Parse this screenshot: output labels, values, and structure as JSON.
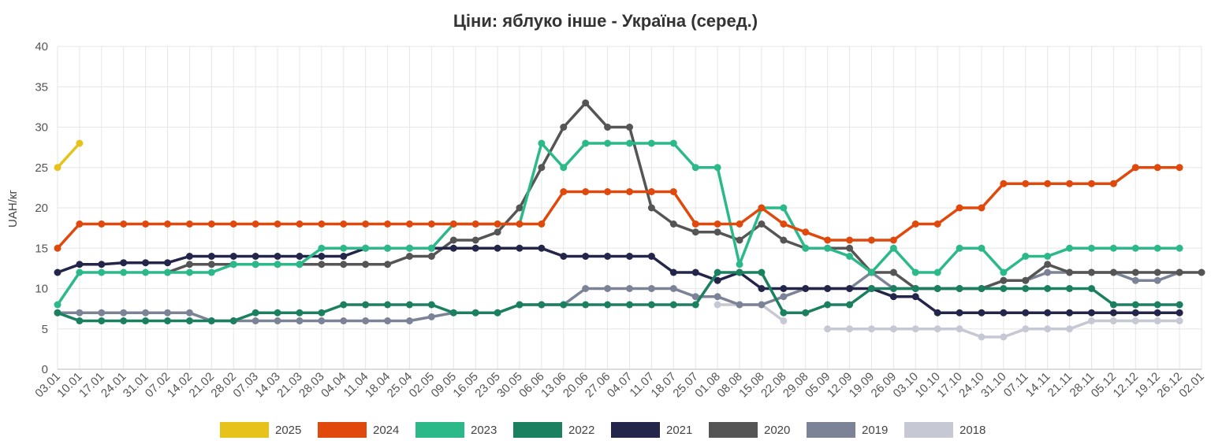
{
  "chart_data": {
    "type": "line",
    "title": "Ціни: яблуко інше - Україна (серед.)",
    "ylabel": "UAH/кг",
    "xlabel": "",
    "ylim": [
      0,
      40
    ],
    "yticks": [
      0,
      5,
      10,
      15,
      20,
      25,
      30,
      35,
      40
    ],
    "grid": true,
    "legend_position": "bottom",
    "categories": [
      "03.01",
      "10.01",
      "17.01",
      "24.01",
      "31.01",
      "07.02",
      "14.02",
      "21.02",
      "28.02",
      "07.03",
      "14.03",
      "21.03",
      "28.03",
      "04.04",
      "11.04",
      "18.04",
      "25.04",
      "02.05",
      "09.05",
      "16.05",
      "23.05",
      "30.05",
      "06.06",
      "13.06",
      "20.06",
      "27.06",
      "04.07",
      "11.07",
      "18.07",
      "25.07",
      "01.08",
      "08.08",
      "15.08",
      "22.08",
      "29.08",
      "05.09",
      "12.09",
      "19.09",
      "26.09",
      "03.10",
      "10.10",
      "17.10",
      "24.10",
      "31.10",
      "07.11",
      "14.11",
      "21.11",
      "28.11",
      "05.12",
      "12.12",
      "19.12",
      "26.12",
      "02.01"
    ],
    "series": [
      {
        "name": "2025",
        "color": "#e6c21a",
        "values": [
          25,
          28,
          null,
          null,
          null,
          null,
          null,
          null,
          null,
          null,
          null,
          null,
          null,
          null,
          null,
          null,
          null,
          null,
          null,
          null,
          null,
          null,
          null,
          null,
          null,
          null,
          null,
          null,
          null,
          null,
          null,
          null,
          null,
          null,
          null,
          null,
          null,
          null,
          null,
          null,
          null,
          null,
          null,
          null,
          null,
          null,
          null,
          null,
          null,
          null,
          null,
          null,
          null
        ]
      },
      {
        "name": "2024",
        "color": "#e0480c",
        "values": [
          15,
          18,
          18,
          18,
          18,
          18,
          18,
          18,
          18,
          18,
          18,
          18,
          18,
          18,
          18,
          18,
          18,
          18,
          18,
          18,
          18,
          18,
          18,
          22,
          22,
          22,
          22,
          22,
          22,
          18,
          18,
          18,
          20,
          18,
          17,
          16,
          16,
          16,
          16,
          18,
          18,
          20,
          20,
          23,
          23,
          23,
          23,
          23,
          23,
          25,
          25,
          25,
          null
        ]
      },
      {
        "name": "2023",
        "color": "#2cb98a",
        "values": [
          8,
          12,
          12,
          12,
          12,
          12,
          12,
          12,
          13,
          13,
          13,
          13,
          15,
          15,
          15,
          15,
          15,
          15,
          18,
          18,
          18,
          18,
          28,
          25,
          28,
          28,
          28,
          28,
          28,
          25,
          25,
          13,
          20,
          20,
          15,
          15,
          14,
          12,
          15,
          12,
          12,
          15,
          15,
          12,
          14,
          14,
          15,
          15,
          15,
          15,
          15,
          15,
          null
        ]
      },
      {
        "name": "2022",
        "color": "#1b8060",
        "values": [
          7,
          6,
          6,
          6,
          6,
          6,
          6,
          6,
          6,
          7,
          7,
          7,
          7,
          8,
          8,
          8,
          8,
          8,
          7,
          7,
          7,
          8,
          8,
          8,
          8,
          8,
          8,
          8,
          8,
          8,
          12,
          12,
          12,
          7,
          7,
          8,
          8,
          10,
          10,
          10,
          10,
          10,
          10,
          10,
          10,
          10,
          10,
          10,
          8,
          8,
          8,
          8,
          null
        ]
      },
      {
        "name": "2021",
        "color": "#23264a",
        "values": [
          12,
          13,
          13,
          13.2,
          13.2,
          13.2,
          14,
          14,
          14,
          14,
          14,
          14,
          14,
          14,
          15,
          15,
          15,
          15,
          15,
          15,
          15,
          15,
          15,
          14,
          14,
          14,
          14,
          14,
          12,
          12,
          11,
          12,
          10,
          10,
          10,
          10,
          10,
          10,
          9,
          9,
          7,
          7,
          7,
          7,
          7,
          7,
          7,
          7,
          7,
          7,
          7,
          7,
          null
        ]
      },
      {
        "name": "2020",
        "color": "#555555",
        "values": [
          null,
          null,
          null,
          null,
          null,
          12,
          13,
          13,
          13,
          13,
          13,
          13,
          13,
          13,
          13,
          13,
          14,
          14,
          16,
          16,
          17,
          20,
          25,
          30,
          33,
          30,
          30,
          20,
          18,
          17,
          17,
          16,
          18,
          16,
          15,
          15,
          15,
          12,
          12,
          10,
          10,
          10,
          10,
          11,
          11,
          13,
          12,
          12,
          12,
          12,
          12,
          12,
          12
        ]
      },
      {
        "name": "2019",
        "color": "#7c8396",
        "values": [
          7,
          7,
          7,
          7,
          7,
          7,
          7,
          6,
          6,
          6,
          6,
          6,
          6,
          6,
          6,
          6,
          6,
          6.5,
          7,
          7,
          7,
          8,
          8,
          8,
          10,
          10,
          10,
          10,
          10,
          9,
          9,
          8,
          8,
          9,
          10,
          10,
          10,
          12,
          10,
          10,
          10,
          10,
          10,
          11,
          11,
          12,
          12,
          12,
          12,
          11,
          11,
          12,
          null
        ]
      },
      {
        "name": "2018",
        "color": "#c6c8d4",
        "values": [
          null,
          null,
          null,
          null,
          null,
          null,
          null,
          null,
          null,
          null,
          null,
          null,
          null,
          null,
          null,
          null,
          null,
          null,
          null,
          null,
          null,
          null,
          null,
          null,
          null,
          null,
          null,
          null,
          null,
          null,
          8,
          8,
          8,
          6,
          null,
          5,
          5,
          5,
          5,
          5,
          5,
          5,
          4,
          4,
          5,
          5,
          5,
          6,
          6,
          6,
          6,
          6,
          null
        ]
      }
    ]
  },
  "legend_icon": "color-swatch"
}
